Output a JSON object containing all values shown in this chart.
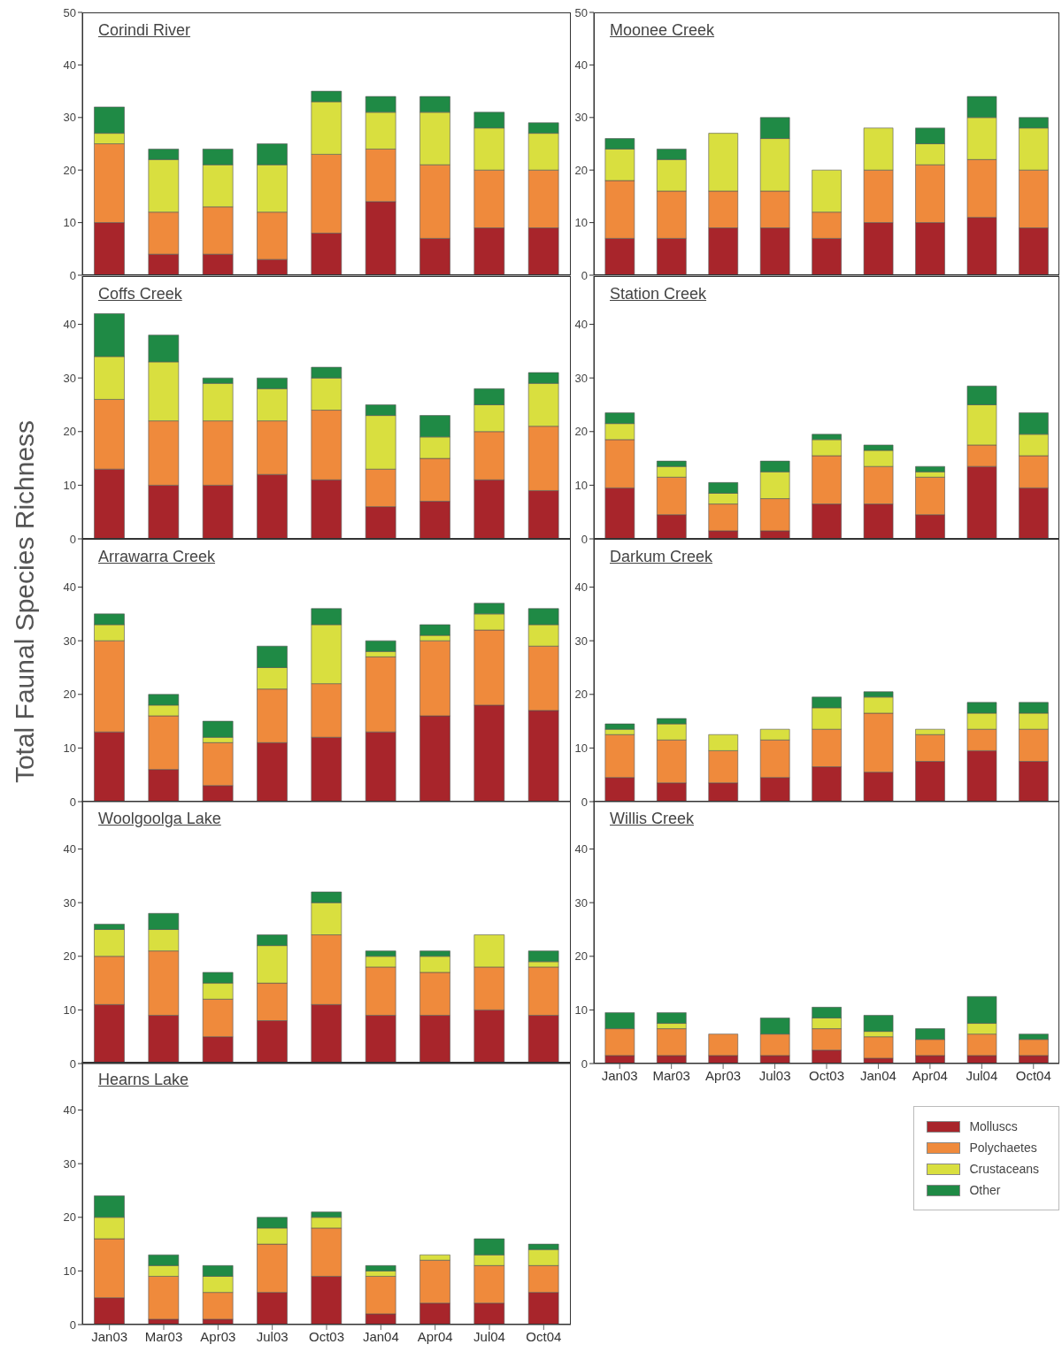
{
  "chart_data": [
    {
      "type": "bar",
      "title": "Corindi River",
      "stacked": true,
      "categories": [
        null,
        null,
        null,
        null,
        null,
        null,
        null,
        null,
        null
      ],
      "ylim": [
        0,
        50
      ],
      "yticks": [
        0,
        10,
        20,
        30,
        40,
        50
      ],
      "tick_labels": "y",
      "series": [
        {
          "color": "#a8252b",
          "values": [
            10,
            4,
            4,
            3,
            8,
            14,
            7,
            9,
            9
          ]
        },
        {
          "color": "#ef8a3c",
          "values": [
            15,
            8,
            9,
            9,
            15,
            10,
            14,
            11,
            11
          ]
        },
        {
          "color": "#d9df3f",
          "values": [
            2,
            10,
            8,
            9,
            10,
            7,
            10,
            8,
            7
          ]
        },
        {
          "color": "#1f8a45",
          "values": [
            5,
            2,
            3,
            4,
            2,
            3,
            3,
            3,
            2
          ]
        }
      ]
    },
    {
      "type": "bar",
      "title": "Moonee Creek",
      "stacked": true,
      "categories": [
        null,
        null,
        null,
        null,
        null,
        null,
        null,
        null,
        null
      ],
      "ylim": [
        0,
        50
      ],
      "yticks": [
        0,
        10,
        20,
        30,
        40,
        50
      ],
      "tick_labels": "y",
      "series": [
        {
          "color": "#a8252b",
          "values": [
            7,
            7,
            9,
            9,
            7,
            10,
            10,
            11,
            9
          ]
        },
        {
          "color": "#ef8a3c",
          "values": [
            11,
            9,
            7,
            7,
            5,
            10,
            11,
            11,
            11
          ]
        },
        {
          "color": "#d9df3f",
          "values": [
            6,
            6,
            11,
            10,
            8,
            8,
            4,
            8,
            8
          ]
        },
        {
          "color": "#1f8a45",
          "values": [
            2,
            2,
            0,
            4,
            0,
            0,
            3,
            4,
            2
          ]
        }
      ]
    },
    {
      "type": "bar",
      "title": "Coffs Creek",
      "stacked": true,
      "categories": [
        null,
        null,
        null,
        null,
        null,
        null,
        null,
        null,
        null
      ],
      "ylim": [
        0,
        49
      ],
      "yticks": [
        0,
        10,
        20,
        30,
        40
      ],
      "tick_labels": "y",
      "series": [
        {
          "color": "#a8252b",
          "values": [
            13,
            10,
            10,
            12,
            11,
            6,
            7,
            11,
            9
          ]
        },
        {
          "color": "#ef8a3c",
          "values": [
            13,
            12,
            12,
            10,
            13,
            7,
            8,
            9,
            12
          ]
        },
        {
          "color": "#d9df3f",
          "values": [
            8,
            11,
            7,
            6,
            6,
            10,
            4,
            5,
            8
          ]
        },
        {
          "color": "#1f8a45",
          "values": [
            8,
            5,
            1,
            2,
            2,
            2,
            4,
            3,
            2
          ]
        }
      ]
    },
    {
      "type": "bar",
      "title": "Station Creek",
      "stacked": true,
      "categories": [
        null,
        null,
        null,
        null,
        null,
        null,
        null,
        null,
        null
      ],
      "ylim": [
        0,
        49
      ],
      "yticks": [
        0,
        10,
        20,
        30,
        40
      ],
      "tick_labels": "y",
      "series": [
        {
          "color": "#a8252b",
          "values": [
            9.5,
            4.5,
            1.5,
            1.5,
            6.5,
            6.5,
            4.5,
            13.5,
            9.5
          ]
        },
        {
          "color": "#ef8a3c",
          "values": [
            9,
            7,
            5,
            6,
            9,
            7,
            7,
            4,
            6
          ]
        },
        {
          "color": "#d9df3f",
          "values": [
            3,
            2,
            2,
            5,
            3,
            3,
            1,
            7.5,
            4
          ]
        },
        {
          "color": "#1f8a45",
          "values": [
            2,
            1,
            2,
            2,
            1,
            1,
            1,
            3.5,
            4
          ]
        }
      ]
    },
    {
      "type": "bar",
      "title": "Arrawarra Creek",
      "ylabel": "Total Faunal Species Richness",
      "stacked": true,
      "categories": [
        null,
        null,
        null,
        null,
        null,
        null,
        null,
        null,
        null
      ],
      "ylim": [
        0,
        49
      ],
      "yticks": [
        0,
        10,
        20,
        30,
        40
      ],
      "tick_labels": "y",
      "series": [
        {
          "color": "#a8252b",
          "values": [
            13,
            6,
            3,
            11,
            12,
            13,
            16,
            18,
            17
          ]
        },
        {
          "color": "#ef8a3c",
          "values": [
            17,
            10,
            8,
            10,
            10,
            14,
            14,
            14,
            12
          ]
        },
        {
          "color": "#d9df3f",
          "values": [
            3,
            2,
            1,
            4,
            11,
            1,
            1,
            3,
            4
          ]
        },
        {
          "color": "#1f8a45",
          "values": [
            2,
            2,
            3,
            4,
            3,
            2,
            2,
            2,
            3
          ]
        }
      ]
    },
    {
      "type": "bar",
      "title": "Darkum Creek",
      "stacked": true,
      "categories": [
        null,
        null,
        null,
        null,
        null,
        null,
        null,
        null,
        null
      ],
      "ylim": [
        0,
        49
      ],
      "yticks": [
        0,
        10,
        20,
        30,
        40
      ],
      "tick_labels": "y",
      "series": [
        {
          "color": "#a8252b",
          "values": [
            4.5,
            3.5,
            3.5,
            4.5,
            6.5,
            5.5,
            7.5,
            9.5,
            7.5
          ]
        },
        {
          "color": "#ef8a3c",
          "values": [
            8,
            8,
            6,
            7,
            7,
            11,
            5,
            4,
            6
          ]
        },
        {
          "color": "#d9df3f",
          "values": [
            1,
            3,
            3,
            2,
            4,
            3,
            1,
            3,
            3
          ]
        },
        {
          "color": "#1f8a45",
          "values": [
            1,
            1,
            0,
            0,
            2,
            1,
            0,
            2,
            2
          ]
        }
      ]
    },
    {
      "type": "bar",
      "title": "Woolgoolga Lake",
      "stacked": true,
      "categories": [
        null,
        null,
        null,
        null,
        null,
        null,
        null,
        null,
        null
      ],
      "ylim": [
        0,
        49
      ],
      "yticks": [
        0,
        10,
        20,
        30,
        40
      ],
      "tick_labels": "y",
      "series": [
        {
          "color": "#a8252b",
          "values": [
            11,
            9,
            5,
            8,
            11,
            9,
            9,
            10,
            9
          ]
        },
        {
          "color": "#ef8a3c",
          "values": [
            9,
            12,
            7,
            7,
            13,
            9,
            8,
            8,
            9
          ]
        },
        {
          "color": "#d9df3f",
          "values": [
            5,
            4,
            3,
            7,
            6,
            2,
            3,
            6,
            1
          ]
        },
        {
          "color": "#1f8a45",
          "values": [
            1,
            3,
            2,
            2,
            2,
            1,
            1,
            0,
            2
          ]
        }
      ]
    },
    {
      "type": "bar",
      "title": "Willis Creek",
      "stacked": true,
      "legend": "bottom right",
      "categories": [
        "Jan03",
        "Mar03",
        "Apr03",
        "Jul03",
        "Oct03",
        "Jan04",
        "Apr04",
        "Jul04",
        "Oct04"
      ],
      "ylim": [
        0,
        49
      ],
      "yticks": [
        0,
        10,
        20,
        30,
        40
      ],
      "series": [
        {
          "name": "Molluscs",
          "color": "#a8252b",
          "values": [
            1.5,
            1.5,
            1.5,
            1.5,
            2.5,
            1,
            1.5,
            1.5,
            1.5
          ]
        },
        {
          "name": "Polychaetes",
          "color": "#ef8a3c",
          "values": [
            5,
            5,
            4,
            4,
            4,
            4,
            3,
            4,
            3
          ]
        },
        {
          "name": "Crustaceans",
          "color": "#d9df3f",
          "values": [
            0,
            1,
            0,
            0,
            2,
            1,
            0,
            2,
            0
          ]
        },
        {
          "name": "Other",
          "color": "#1f8a45",
          "values": [
            3,
            2,
            0,
            3,
            2,
            3,
            2,
            5,
            1
          ]
        }
      ]
    },
    {
      "type": "bar",
      "title": "Hearns Lake",
      "stacked": true,
      "categories": [
        "Jan03",
        "Mar03",
        "Apr03",
        "Jul03",
        "Oct03",
        "Jan04",
        "Apr04",
        "Jul04",
        "Oct04"
      ],
      "ylim": [
        0,
        49
      ],
      "yticks": [
        0,
        10,
        20,
        30,
        40
      ],
      "series": [
        {
          "color": "#a8252b",
          "values": [
            5,
            1,
            1,
            6,
            9,
            2,
            4,
            4,
            6
          ]
        },
        {
          "color": "#ef8a3c",
          "values": [
            11,
            8,
            5,
            9,
            9,
            7,
            8,
            7,
            5
          ]
        },
        {
          "color": "#d9df3f",
          "values": [
            4,
            2,
            3,
            3,
            2,
            1,
            1,
            2,
            3
          ]
        },
        {
          "color": "#1f8a45",
          "values": [
            4,
            2,
            2,
            2,
            1,
            1,
            0,
            3,
            1
          ]
        }
      ]
    }
  ]
}
